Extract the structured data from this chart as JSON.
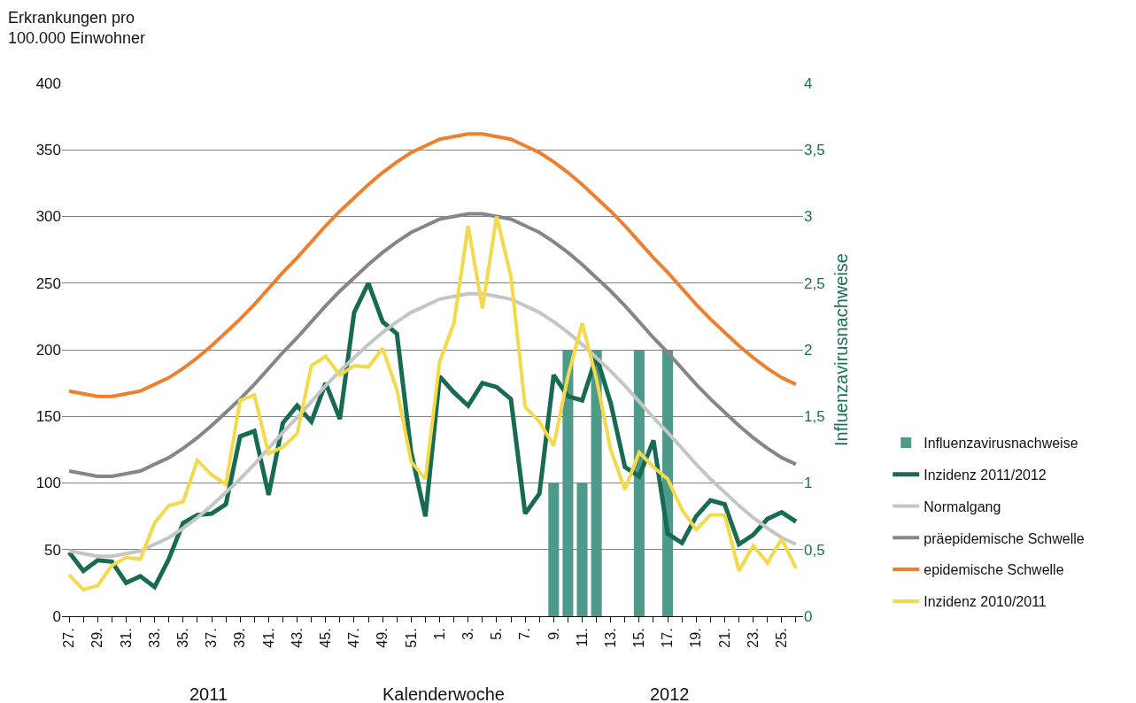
{
  "chart_data": {
    "type": "line",
    "ylabel": "Erkrankungen pro\n100.000 Einwohner",
    "xlabel": "Kalenderwoche",
    "y2label": "Influenzavirusnachweise",
    "annotations": [
      "2011",
      "2012"
    ],
    "categories": [
      "27.",
      null,
      "29.",
      null,
      "31.",
      null,
      "33.",
      null,
      "35.",
      null,
      "37.",
      null,
      "39.",
      null,
      "41.",
      null,
      "43.",
      null,
      "45.",
      null,
      "47.",
      null,
      "49.",
      null,
      "51.",
      null,
      "1.",
      null,
      "3.",
      null,
      "5.",
      null,
      "7.",
      null,
      "9.",
      null,
      "11.",
      null,
      "13.",
      null,
      "15.",
      null,
      "17.",
      null,
      "19.",
      null,
      "21.",
      null,
      "23.",
      null,
      "25.",
      null
    ],
    "series": [
      {
        "name": "Influenzavirusnachweise",
        "type": "bar",
        "axis": "y2",
        "color": "#4d9a8a",
        "values": [
          null,
          null,
          null,
          null,
          null,
          null,
          null,
          null,
          null,
          null,
          null,
          null,
          null,
          null,
          null,
          null,
          null,
          null,
          null,
          null,
          null,
          null,
          null,
          null,
          null,
          null,
          null,
          null,
          null,
          null,
          null,
          null,
          null,
          null,
          1,
          2,
          1,
          2,
          null,
          null,
          2,
          null,
          2,
          null,
          null,
          null,
          null,
          null,
          null,
          null,
          null,
          null
        ]
      },
      {
        "name": "Inzidenz 2011/2012",
        "color": "#176b55",
        "values": [
          48,
          34,
          42,
          41,
          25,
          30,
          22,
          43,
          70,
          76,
          77,
          84,
          135,
          139,
          91,
          145,
          158,
          146,
          175,
          148,
          228,
          250,
          221,
          212,
          123,
          75,
          180,
          168,
          158,
          175,
          172,
          163,
          77,
          92,
          181,
          165,
          162,
          195,
          160,
          112,
          105,
          132,
          62,
          55,
          75,
          87,
          84,
          54,
          61,
          73,
          78,
          71
        ]
      },
      {
        "name": "Normalgang",
        "color": "#c4c6c6",
        "values": [
          49,
          47,
          45,
          45,
          47,
          49,
          54,
          59,
          66,
          74,
          83,
          93,
          103,
          114,
          126,
          138,
          149,
          161,
          173,
          184,
          194,
          204,
          213,
          221,
          228,
          233,
          238,
          240,
          242,
          242,
          240,
          238,
          233,
          228,
          221,
          213,
          204,
          194,
          184,
          173,
          161,
          149,
          138,
          126,
          114,
          103,
          93,
          83,
          74,
          66,
          59,
          54
        ]
      },
      {
        "name": "präepidemische Schwelle",
        "color": "#85858c",
        "values": [
          109,
          107,
          105,
          105,
          107,
          109,
          114,
          119,
          126,
          134,
          143,
          153,
          163,
          174,
          186,
          198,
          209,
          221,
          233,
          244,
          254,
          264,
          273,
          281,
          288,
          293,
          298,
          300,
          302,
          302,
          300,
          298,
          293,
          288,
          281,
          273,
          264,
          254,
          244,
          233,
          221,
          209,
          198,
          186,
          174,
          163,
          153,
          143,
          134,
          126,
          119,
          114
        ]
      },
      {
        "name": "epidemische Schwelle",
        "color": "#f07f2d",
        "values": [
          169,
          167,
          165,
          165,
          167,
          169,
          174,
          179,
          186,
          194,
          203,
          213,
          223,
          234,
          246,
          258,
          269,
          281,
          293,
          304,
          314,
          324,
          333,
          341,
          348,
          353,
          358,
          360,
          362,
          362,
          360,
          358,
          353,
          348,
          341,
          333,
          324,
          314,
          304,
          293,
          281,
          269,
          258,
          246,
          234,
          223,
          213,
          203,
          194,
          186,
          179,
          174
        ]
      },
      {
        "name": "Inzidenz 2010/2011",
        "color": "#f4d94b",
        "values": [
          31,
          20,
          23,
          38,
          44,
          43,
          70,
          83,
          86,
          117,
          106,
          99,
          162,
          166,
          122,
          127,
          137,
          188,
          195,
          181,
          188,
          187,
          201,
          170,
          116,
          103,
          191,
          220,
          293,
          231,
          300,
          255,
          157,
          146,
          128,
          180,
          220,
          178,
          125,
          95,
          123,
          112,
          103,
          80,
          65,
          76,
          76,
          34,
          53,
          40,
          58,
          36
        ]
      }
    ],
    "ylim": [
      0,
      400
    ],
    "yticks": [
      0,
      50,
      100,
      150,
      200,
      250,
      300,
      350,
      400
    ],
    "y2lim": [
      0,
      4
    ],
    "y2ticks": [
      0,
      {
        "value": 0.5,
        "label": "0,5"
      },
      1,
      {
        "value": 1.5,
        "label": "1,5"
      },
      2,
      {
        "value": 2.5,
        "label": "2,5"
      },
      3,
      {
        "value": 3.5,
        "label": "3,5"
      },
      4
    ],
    "grid": "y",
    "legend": "right"
  }
}
